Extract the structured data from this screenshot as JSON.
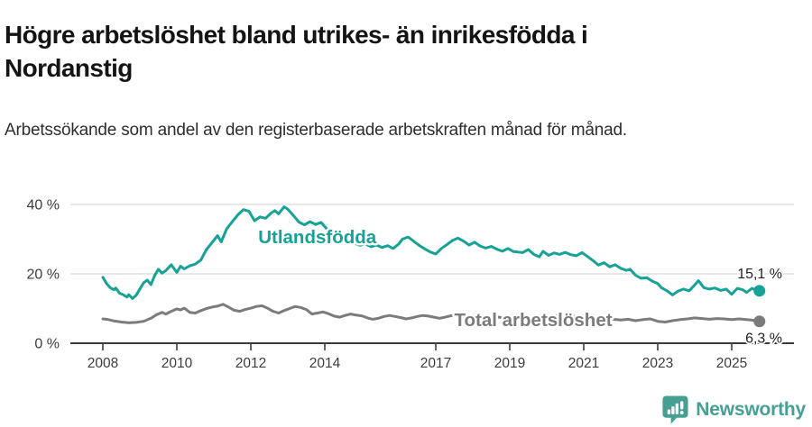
{
  "header": {
    "title": "Högre arbetslöshet bland utrikes- än inrikesfödda i Nordanstig",
    "subtitle": "Arbetssökande som andel av den registerbaserade arbetskraften månad för månad."
  },
  "branding": {
    "name": "Newsworthy",
    "color": "#45a093",
    "icon": "speech-bubble-bar-chart-icon"
  },
  "colors": {
    "foreign_born_line": "#16a296",
    "total_line": "#7b7b7b",
    "axis": "#3c3c3c",
    "gridline": "#e0e0e0",
    "value_label": "#222222"
  },
  "chart_data": {
    "type": "line",
    "title": "Högre arbetslöshet bland utrikes- än inrikesfödda i Nordanstig",
    "subtitle": "Arbetssökande som andel av den registerbaserade arbetskraften månad för månad.",
    "x_axis": {
      "ticks": [
        2008,
        2010,
        2012,
        2014,
        2017,
        2019,
        2021,
        2023,
        2025
      ],
      "range": [
        2007.7,
        2026.4
      ]
    },
    "y_axis": {
      "ticks": [
        {
          "value": 0,
          "label": "0 %"
        },
        {
          "value": 20,
          "label": "20 %"
        },
        {
          "value": 40,
          "label": "40 %"
        }
      ],
      "range": [
        0,
        42
      ],
      "grid": true
    },
    "legend_position": "inline-labels",
    "series": [
      {
        "name": "Utlandsfödda",
        "color": "#16a296",
        "end_value": 15.1,
        "end_label": "15,1 %",
        "label_pos": [
          2012.2,
          28.8
        ],
        "points": [
          [
            2008.0,
            19.0
          ],
          [
            2008.1,
            17.2
          ],
          [
            2008.2,
            16.0
          ],
          [
            2008.3,
            15.4
          ],
          [
            2008.35,
            15.9
          ],
          [
            2008.45,
            14.4
          ],
          [
            2008.55,
            14.0
          ],
          [
            2008.65,
            13.3
          ],
          [
            2008.7,
            14.0
          ],
          [
            2008.8,
            12.9
          ],
          [
            2008.9,
            13.8
          ],
          [
            2009.0,
            15.6
          ],
          [
            2009.1,
            17.4
          ],
          [
            2009.2,
            18.2
          ],
          [
            2009.3,
            16.9
          ],
          [
            2009.4,
            19.5
          ],
          [
            2009.5,
            21.3
          ],
          [
            2009.6,
            20.2
          ],
          [
            2009.7,
            20.9
          ],
          [
            2009.85,
            22.6
          ],
          [
            2010.0,
            20.4
          ],
          [
            2010.1,
            22.2
          ],
          [
            2010.2,
            21.4
          ],
          [
            2010.35,
            22.3
          ],
          [
            2010.5,
            22.8
          ],
          [
            2010.65,
            24.0
          ],
          [
            2010.8,
            27.0
          ],
          [
            2010.95,
            29.0
          ],
          [
            2011.1,
            31.0
          ],
          [
            2011.2,
            29.2
          ],
          [
            2011.35,
            33.0
          ],
          [
            2011.5,
            35.0
          ],
          [
            2011.65,
            37.0
          ],
          [
            2011.8,
            38.5
          ],
          [
            2011.95,
            38.0
          ],
          [
            2012.1,
            35.3
          ],
          [
            2012.25,
            36.4
          ],
          [
            2012.4,
            36.0
          ],
          [
            2012.55,
            37.5
          ],
          [
            2012.65,
            38.2
          ],
          [
            2012.75,
            37.3
          ],
          [
            2012.9,
            39.3
          ],
          [
            2013.0,
            38.6
          ],
          [
            2013.15,
            36.8
          ],
          [
            2013.3,
            34.9
          ],
          [
            2013.45,
            34.1
          ],
          [
            2013.6,
            35.0
          ],
          [
            2013.75,
            34.2
          ],
          [
            2013.9,
            34.8
          ],
          [
            2014.05,
            33.0
          ],
          [
            2014.2,
            31.5
          ],
          [
            2014.35,
            30.2
          ],
          [
            2014.5,
            29.3
          ],
          [
            2014.65,
            29.8
          ],
          [
            2014.8,
            28.8
          ],
          [
            2014.95,
            28.2
          ],
          [
            2015.1,
            28.6
          ],
          [
            2015.25,
            27.8
          ],
          [
            2015.4,
            28.3
          ],
          [
            2015.55,
            27.6
          ],
          [
            2015.7,
            28.1
          ],
          [
            2015.85,
            27.3
          ],
          [
            2016.0,
            28.6
          ],
          [
            2016.1,
            30.0
          ],
          [
            2016.25,
            30.6
          ],
          [
            2016.4,
            29.4
          ],
          [
            2016.55,
            28.2
          ],
          [
            2016.7,
            27.2
          ],
          [
            2016.85,
            26.3
          ],
          [
            2017.0,
            25.7
          ],
          [
            2017.15,
            27.3
          ],
          [
            2017.3,
            28.4
          ],
          [
            2017.45,
            29.6
          ],
          [
            2017.6,
            30.3
          ],
          [
            2017.75,
            29.4
          ],
          [
            2017.9,
            28.3
          ],
          [
            2018.05,
            29.1
          ],
          [
            2018.2,
            28.0
          ],
          [
            2018.35,
            27.4
          ],
          [
            2018.5,
            27.9
          ],
          [
            2018.65,
            27.1
          ],
          [
            2018.8,
            26.5
          ],
          [
            2018.95,
            27.3
          ],
          [
            2019.1,
            26.4
          ],
          [
            2019.35,
            26.1
          ],
          [
            2019.5,
            27.0
          ],
          [
            2019.65,
            25.6
          ],
          [
            2019.8,
            24.9
          ],
          [
            2019.9,
            26.5
          ],
          [
            2020.05,
            25.3
          ],
          [
            2020.2,
            26.0
          ],
          [
            2020.35,
            25.6
          ],
          [
            2020.5,
            26.2
          ],
          [
            2020.65,
            25.5
          ],
          [
            2020.8,
            25.2
          ],
          [
            2020.95,
            26.1
          ],
          [
            2021.1,
            25.0
          ],
          [
            2021.25,
            23.8
          ],
          [
            2021.4,
            22.5
          ],
          [
            2021.55,
            23.2
          ],
          [
            2021.7,
            22.0
          ],
          [
            2021.85,
            22.6
          ],
          [
            2022.0,
            21.6
          ],
          [
            2022.15,
            21.0
          ],
          [
            2022.25,
            21.3
          ],
          [
            2022.4,
            19.6
          ],
          [
            2022.55,
            18.7
          ],
          [
            2022.7,
            18.9
          ],
          [
            2022.85,
            17.9
          ],
          [
            2023.0,
            17.2
          ],
          [
            2023.1,
            16.0
          ],
          [
            2023.25,
            15.1
          ],
          [
            2023.4,
            13.9
          ],
          [
            2023.55,
            15.0
          ],
          [
            2023.7,
            15.6
          ],
          [
            2023.85,
            15.1
          ],
          [
            2024.0,
            16.8
          ],
          [
            2024.1,
            18.0
          ],
          [
            2024.25,
            16.0
          ],
          [
            2024.4,
            15.6
          ],
          [
            2024.55,
            15.9
          ],
          [
            2024.7,
            15.2
          ],
          [
            2024.85,
            15.6
          ],
          [
            2025.0,
            14.1
          ],
          [
            2025.15,
            15.8
          ],
          [
            2025.3,
            15.4
          ],
          [
            2025.4,
            14.6
          ],
          [
            2025.55,
            15.8
          ],
          [
            2025.65,
            15.3
          ],
          [
            2025.75,
            15.1
          ]
        ]
      },
      {
        "name": "Total arbetslöshet",
        "color": "#7b7b7b",
        "end_value": 6.3,
        "end_label": "6,3 %",
        "label_pos": [
          2017.5,
          4.9
        ],
        "points": [
          [
            2008.0,
            7.0
          ],
          [
            2008.15,
            6.8
          ],
          [
            2008.3,
            6.4
          ],
          [
            2008.5,
            6.1
          ],
          [
            2008.7,
            5.9
          ],
          [
            2008.9,
            6.0
          ],
          [
            2009.1,
            6.3
          ],
          [
            2009.3,
            7.2
          ],
          [
            2009.45,
            8.2
          ],
          [
            2009.6,
            8.9
          ],
          [
            2009.7,
            8.4
          ],
          [
            2009.85,
            9.2
          ],
          [
            2010.0,
            9.9
          ],
          [
            2010.1,
            9.6
          ],
          [
            2010.2,
            10.1
          ],
          [
            2010.35,
            8.9
          ],
          [
            2010.5,
            8.7
          ],
          [
            2010.65,
            9.4
          ],
          [
            2010.8,
            10.0
          ],
          [
            2010.95,
            10.4
          ],
          [
            2011.1,
            10.7
          ],
          [
            2011.25,
            11.2
          ],
          [
            2011.4,
            10.4
          ],
          [
            2011.55,
            9.5
          ],
          [
            2011.7,
            9.2
          ],
          [
            2011.85,
            9.7
          ],
          [
            2012.0,
            10.1
          ],
          [
            2012.15,
            10.6
          ],
          [
            2012.3,
            10.8
          ],
          [
            2012.45,
            10.1
          ],
          [
            2012.6,
            9.2
          ],
          [
            2012.75,
            8.7
          ],
          [
            2012.9,
            9.4
          ],
          [
            2013.05,
            10.0
          ],
          [
            2013.2,
            10.6
          ],
          [
            2013.35,
            10.3
          ],
          [
            2013.5,
            9.7
          ],
          [
            2013.65,
            8.4
          ],
          [
            2013.8,
            8.7
          ],
          [
            2013.95,
            9.0
          ],
          [
            2014.1,
            8.5
          ],
          [
            2014.25,
            7.8
          ],
          [
            2014.4,
            7.5
          ],
          [
            2014.55,
            8.0
          ],
          [
            2014.7,
            8.4
          ],
          [
            2014.85,
            8.1
          ],
          [
            2015.0,
            7.9
          ],
          [
            2015.15,
            7.3
          ],
          [
            2015.3,
            6.9
          ],
          [
            2015.45,
            7.2
          ],
          [
            2015.6,
            7.7
          ],
          [
            2015.75,
            8.0
          ],
          [
            2015.9,
            7.7
          ],
          [
            2016.05,
            7.4
          ],
          [
            2016.2,
            7.0
          ],
          [
            2016.35,
            7.3
          ],
          [
            2016.5,
            7.7
          ],
          [
            2016.65,
            8.0
          ],
          [
            2016.8,
            7.8
          ],
          [
            2016.95,
            7.5
          ],
          [
            2017.1,
            7.2
          ],
          [
            2017.25,
            7.5
          ],
          [
            2017.4,
            7.9
          ],
          [
            2017.55,
            8.1
          ],
          [
            2017.7,
            7.8
          ],
          [
            2017.85,
            7.4
          ],
          [
            2018.0,
            7.6
          ],
          [
            2018.2,
            7.9
          ],
          [
            2018.4,
            7.4
          ],
          [
            2018.6,
            7.7
          ],
          [
            2018.8,
            7.3
          ],
          [
            2019.0,
            7.0
          ],
          [
            2019.2,
            7.4
          ],
          [
            2019.4,
            7.7
          ],
          [
            2019.6,
            7.3
          ],
          [
            2019.8,
            7.0
          ],
          [
            2020.0,
            7.3
          ],
          [
            2020.2,
            7.8
          ],
          [
            2020.4,
            8.2
          ],
          [
            2020.6,
            8.0
          ],
          [
            2020.8,
            7.7
          ],
          [
            2021.0,
            7.9
          ],
          [
            2021.2,
            7.5
          ],
          [
            2021.4,
            7.1
          ],
          [
            2021.6,
            7.3
          ],
          [
            2021.8,
            6.9
          ],
          [
            2022.0,
            6.7
          ],
          [
            2022.2,
            6.9
          ],
          [
            2022.4,
            6.5
          ],
          [
            2022.6,
            6.8
          ],
          [
            2022.8,
            7.0
          ],
          [
            2023.0,
            6.3
          ],
          [
            2023.2,
            6.1
          ],
          [
            2023.4,
            6.5
          ],
          [
            2023.6,
            6.8
          ],
          [
            2023.8,
            7.0
          ],
          [
            2024.0,
            7.3
          ],
          [
            2024.2,
            7.1
          ],
          [
            2024.4,
            6.9
          ],
          [
            2024.6,
            7.1
          ],
          [
            2024.8,
            7.0
          ],
          [
            2025.0,
            6.8
          ],
          [
            2025.2,
            7.0
          ],
          [
            2025.4,
            6.8
          ],
          [
            2025.6,
            6.6
          ],
          [
            2025.75,
            6.3
          ]
        ]
      }
    ]
  }
}
